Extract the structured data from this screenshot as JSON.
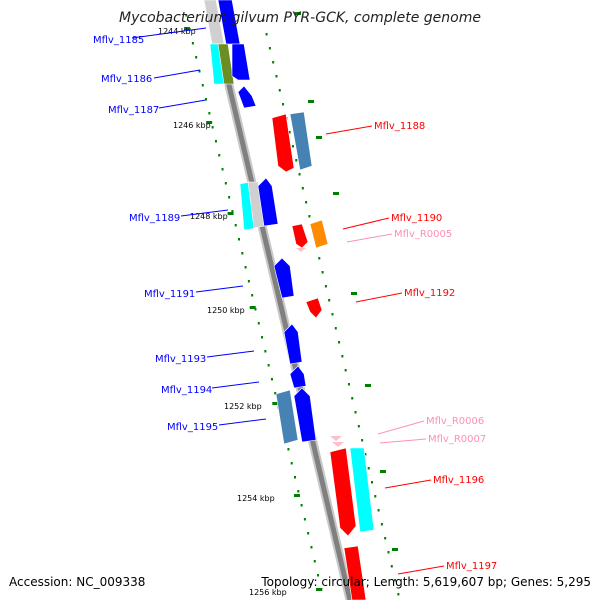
{
  "title": "Mycobacterium gilvum PYR-GCK, complete genome",
  "footer": {
    "accession": "Accession: NC_009338",
    "topology": "Topology: circular; Length: 5,619,607 bp; Genes: 5,295"
  },
  "colors": {
    "backbone": "#808080",
    "forward_cds": "#ff0000",
    "reverse_cds": "#0000ff",
    "rna": "#ffc0cb",
    "ticks": "#008000",
    "steelblue": "#4682b4",
    "cyan": "#00ffff",
    "orange": "#ff8c00",
    "olive": "#6b8e23"
  },
  "tick_labels": [
    "1244 kbp",
    "1246 kbp",
    "1248 kbp",
    "1250 kbp",
    "1252 kbp",
    "1254 kbp",
    "1256 kbp"
  ],
  "labels": {
    "left": [
      {
        "id": "Mflv_1185",
        "text": "Mflv_1185"
      },
      {
        "id": "Mflv_1186",
        "text": "Mflv_1186"
      },
      {
        "id": "Mflv_1187",
        "text": "Mflv_1187"
      },
      {
        "id": "Mflv_1189",
        "text": "Mflv_1189"
      },
      {
        "id": "Mflv_1191",
        "text": "Mflv_1191"
      },
      {
        "id": "Mflv_1193",
        "text": "Mflv_1193"
      },
      {
        "id": "Mflv_1194",
        "text": "Mflv_1194"
      },
      {
        "id": "Mflv_1195",
        "text": "Mflv_1195"
      }
    ],
    "right": [
      {
        "id": "Mflv_1188",
        "text": "Mflv_1188"
      },
      {
        "id": "Mflv_1190",
        "text": "Mflv_1190"
      },
      {
        "id": "Mflv_R0005",
        "text": "Mflv_R0005"
      },
      {
        "id": "Mflv_1192",
        "text": "Mflv_1192"
      },
      {
        "id": "Mflv_R0006",
        "text": "Mflv_R0006"
      },
      {
        "id": "Mflv_R0007",
        "text": "Mflv_R0007"
      },
      {
        "id": "Mflv_1196",
        "text": "Mflv_1196"
      },
      {
        "id": "Mflv_1197",
        "text": "Mflv_1197"
      }
    ]
  }
}
